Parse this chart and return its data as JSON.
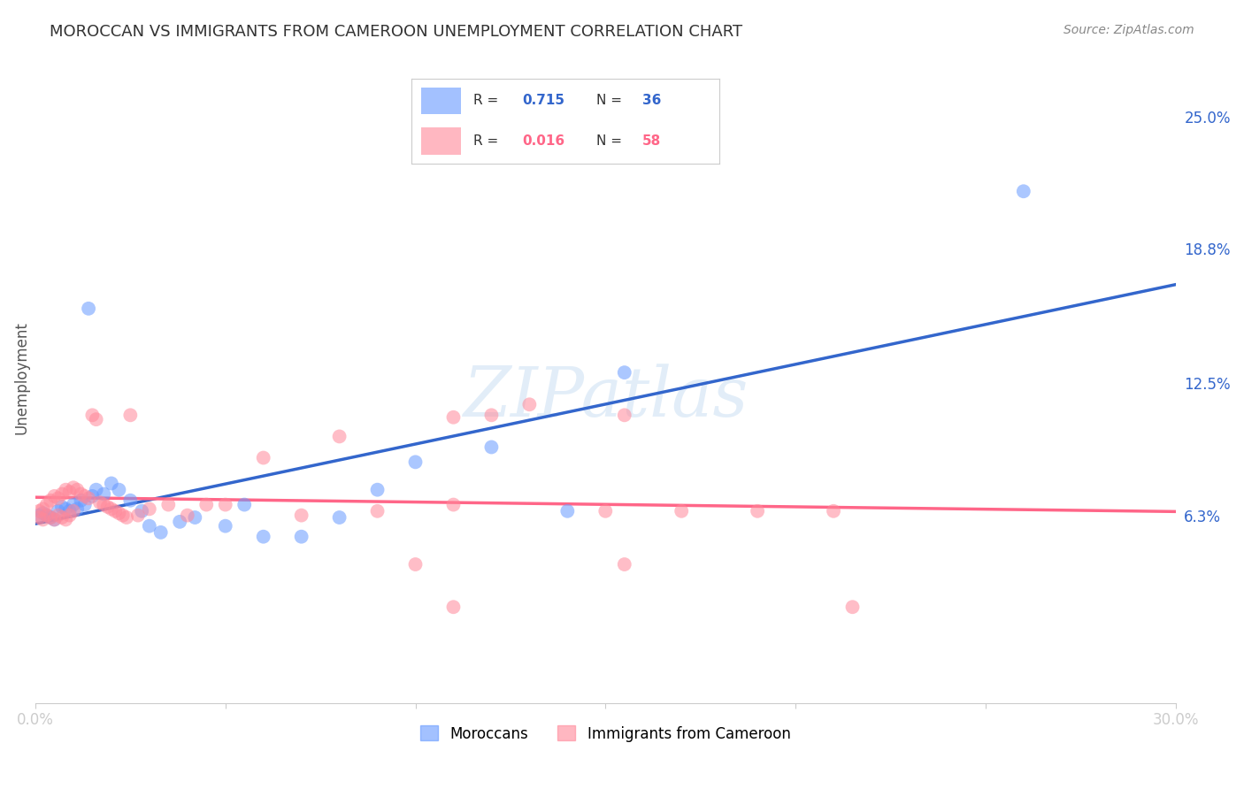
{
  "title": "MOROCCAN VS IMMIGRANTS FROM CAMEROON UNEMPLOYMENT CORRELATION CHART",
  "source": "Source: ZipAtlas.com",
  "ylabel": "Unemployment",
  "xlim": [
    0.0,
    0.3
  ],
  "ylim": [
    -0.025,
    0.28
  ],
  "ytick_values": [
    0.063,
    0.125,
    0.188,
    0.25
  ],
  "ytick_labels": [
    "6.3%",
    "12.5%",
    "18.8%",
    "25.0%"
  ],
  "background_color": "#ffffff",
  "grid_color": "#cccccc",
  "legend1_R": "0.715",
  "legend1_N": "36",
  "legend2_R": "0.016",
  "legend2_N": "58",
  "blue_color": "#6699ff",
  "pink_color": "#ff8899",
  "blue_line_color": "#3366cc",
  "pink_line_color": "#ff6688",
  "watermark": "ZIPatlas",
  "legend_label_blue": "Moroccans",
  "legend_label_pink": "Immigrants from Cameroon",
  "blue_x": [
    0.001,
    0.002,
    0.003,
    0.004,
    0.005,
    0.006,
    0.007,
    0.008,
    0.009,
    0.01,
    0.011,
    0.012,
    0.013,
    0.015,
    0.016,
    0.018,
    0.02,
    0.022,
    0.025,
    0.028,
    0.03,
    0.033,
    0.038,
    0.042,
    0.05,
    0.055,
    0.06,
    0.07,
    0.08,
    0.09,
    0.1,
    0.12,
    0.14,
    0.155,
    0.26,
    0.014
  ],
  "blue_y": [
    0.063,
    0.064,
    0.063,
    0.062,
    0.061,
    0.065,
    0.067,
    0.066,
    0.065,
    0.068,
    0.066,
    0.07,
    0.068,
    0.072,
    0.075,
    0.073,
    0.078,
    0.075,
    0.07,
    0.065,
    0.058,
    0.055,
    0.06,
    0.062,
    0.058,
    0.068,
    0.053,
    0.053,
    0.062,
    0.075,
    0.088,
    0.095,
    0.065,
    0.13,
    0.215,
    0.16
  ],
  "pink_x": [
    0.001,
    0.001,
    0.002,
    0.002,
    0.003,
    0.003,
    0.004,
    0.004,
    0.005,
    0.005,
    0.006,
    0.006,
    0.007,
    0.007,
    0.008,
    0.008,
    0.009,
    0.009,
    0.01,
    0.01,
    0.011,
    0.012,
    0.013,
    0.014,
    0.015,
    0.016,
    0.017,
    0.018,
    0.019,
    0.02,
    0.021,
    0.022,
    0.023,
    0.025,
    0.027,
    0.03,
    0.035,
    0.04,
    0.045,
    0.05,
    0.06,
    0.07,
    0.08,
    0.09,
    0.1,
    0.11,
    0.12,
    0.13,
    0.15,
    0.155,
    0.17,
    0.19,
    0.21,
    0.215,
    0.155,
    0.11,
    0.11,
    0.024
  ],
  "pink_y": [
    0.065,
    0.062,
    0.066,
    0.061,
    0.068,
    0.063,
    0.07,
    0.062,
    0.072,
    0.061,
    0.071,
    0.063,
    0.073,
    0.062,
    0.075,
    0.061,
    0.074,
    0.063,
    0.076,
    0.065,
    0.075,
    0.073,
    0.072,
    0.071,
    0.11,
    0.108,
    0.069,
    0.068,
    0.067,
    0.066,
    0.065,
    0.064,
    0.063,
    0.11,
    0.063,
    0.066,
    0.068,
    0.063,
    0.068,
    0.068,
    0.09,
    0.063,
    0.1,
    0.065,
    0.04,
    0.02,
    0.11,
    0.115,
    0.065,
    0.04,
    0.065,
    0.065,
    0.065,
    0.02,
    0.11,
    0.109,
    0.068,
    0.062
  ]
}
